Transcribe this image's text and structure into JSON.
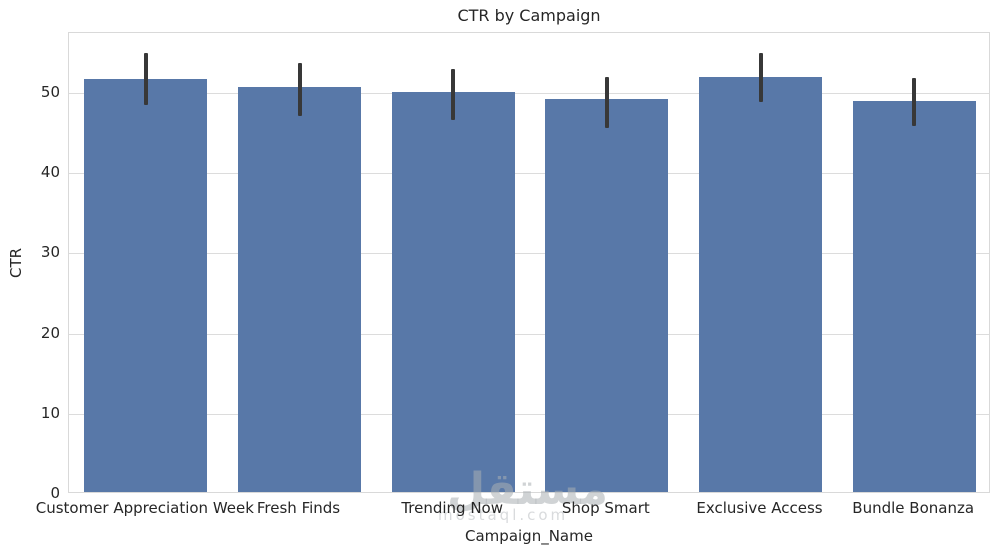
{
  "title": "CTR by Campaign",
  "watermark": {
    "logo_text": "مستقل",
    "domain_text": "mostaql.com"
  },
  "chart_data": {
    "type": "bar",
    "title": "CTR by Campaign",
    "xlabel": "Campaign_Name",
    "ylabel": "CTR",
    "categories": [
      "Customer Appreciation Week",
      "Fresh Finds",
      "Trending Now",
      "Shop Smart",
      "Exclusive Access",
      "Bundle Bonanza"
    ],
    "values": [
      51.5,
      50.5,
      49.9,
      49.0,
      51.8,
      48.8
    ],
    "error_low": [
      48.5,
      47.1,
      46.6,
      45.7,
      48.9,
      45.9
    ],
    "error_high": [
      55.0,
      53.8,
      53.0,
      52.0,
      55.0,
      51.9
    ],
    "yticks": [
      0,
      10,
      20,
      30,
      40,
      50
    ],
    "ylim": [
      0,
      57.5
    ],
    "grid": true,
    "legend": false,
    "bar_color": "#5878a8",
    "error_color": "#383838",
    "grid_color": "#dcdcdc",
    "spine_color": "#d9d9d9",
    "text_color": "#262626"
  }
}
